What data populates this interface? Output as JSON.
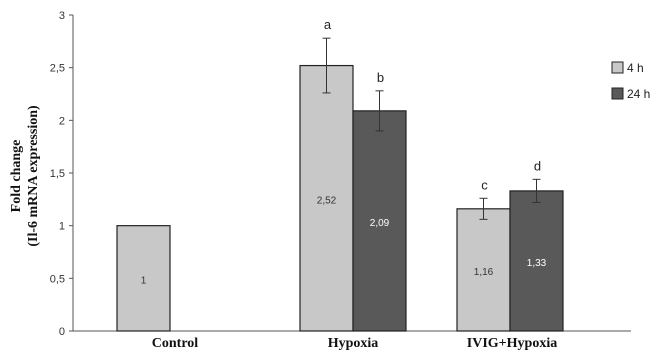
{
  "chart_data": {
    "type": "bar",
    "categories": [
      "Control",
      "Hypoxia",
      "IVIG+Hypoxia"
    ],
    "ylabel_lines": [
      "Fold change",
      "(Il-6 mRNA expression)"
    ],
    "xlabel": "",
    "ylim": [
      0,
      3
    ],
    "yticks": [
      0,
      0.5,
      1,
      1.5,
      2,
      2.5,
      3
    ],
    "ytick_labels": [
      "0",
      "0,5",
      "1",
      "1,5",
      "2",
      "2,5",
      "3"
    ],
    "grid": false,
    "legend_position": "right",
    "bars": [
      {
        "category": "Control",
        "series": "4 h",
        "value": 1,
        "label": "1",
        "error": null,
        "sig": ""
      },
      {
        "category": "Hypoxia",
        "series": "4 h",
        "value": 2.52,
        "label": "2,52",
        "error": 0.26,
        "sig": "a"
      },
      {
        "category": "Hypoxia",
        "series": "24 h",
        "value": 2.09,
        "label": "2,09",
        "error": 0.19,
        "sig": "b"
      },
      {
        "category": "IVIG+Hypoxia",
        "series": "4 h",
        "value": 1.16,
        "label": "1,16",
        "error": 0.1,
        "sig": "c"
      },
      {
        "category": "IVIG+Hypoxia",
        "series": "24 h",
        "value": 1.33,
        "label": "1,33",
        "error": 0.11,
        "sig": "d"
      }
    ],
    "series": [
      {
        "name": "4 h",
        "color": "#c8c8c8",
        "label_color": "#333333"
      },
      {
        "name": "24 h",
        "color": "#595959",
        "label_color": "#ffffff"
      }
    ]
  }
}
